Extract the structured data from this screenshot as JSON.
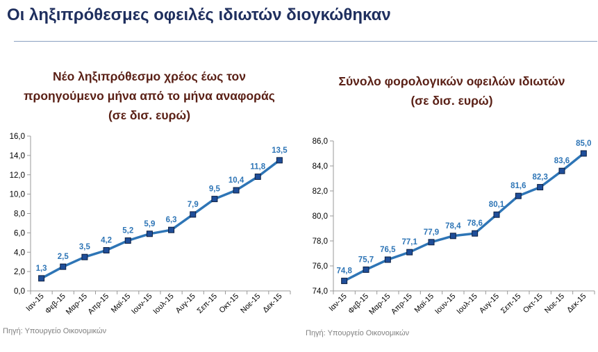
{
  "slide": {
    "title": "Οι ληξιπρόθεσμες οφειλές ιδιωτών διογκώθηκαν"
  },
  "charts": {
    "left": {
      "title_line1": "Νέο ληξιπρόθεσμο χρέος έως τον",
      "title_line2": "προηγούμενο μήνα από το μήνα αναφοράς",
      "title_line3": "(σε δισ. ευρώ)",
      "source": "Πηγή: Υπουργείο Οικονομικών"
    },
    "right": {
      "title_line1": "Σύνολο φορολογικών οφειλών ιδιωτών",
      "title_line2": "(σε δισ. ευρώ)",
      "source": "Πηγή: Υπουργείο Οικονομικών"
    }
  },
  "colors": {
    "line": "#2e75b6",
    "marker_fill": "#1f4e99",
    "marker_stroke": "#0d1f40",
    "data_label": "#2e75b6",
    "axis": "#999999",
    "tick_text": "#000000"
  },
  "chart_data": [
    {
      "type": "line",
      "title": "Νέο ληξιπρόθεσμο χρέος έως τον προηγούμενο μήνα από το μήνα αναφοράς (σε δισ. ευρώ)",
      "categories": [
        "Ιαν-15",
        "Φεβ-15",
        "Μαρ-15",
        "Απρ-15",
        "Μαϊ-15",
        "Ιουν-15",
        "Ιουλ-15",
        "Αυγ-15",
        "Σεπ-15",
        "Οκτ-15",
        "Νοε-15",
        "Δεκ-15"
      ],
      "values": [
        1.3,
        2.5,
        3.5,
        4.2,
        5.2,
        5.9,
        6.3,
        7.9,
        9.5,
        10.4,
        11.8,
        13.5
      ],
      "data_labels": [
        "1,3",
        "2,5",
        "3,5",
        "4,2",
        "5,2",
        "5,9",
        "6,3",
        "7,9",
        "9,5",
        "10,4",
        "11,8",
        "13,5"
      ],
      "yticks": [
        "0,0",
        "2,0",
        "4,0",
        "6,0",
        "8,0",
        "10,0",
        "12,0",
        "14,0",
        "16,0"
      ],
      "ylim": [
        0,
        16
      ],
      "grid": false,
      "legend": "none"
    },
    {
      "type": "line",
      "title": "Σύνολο φορολογικών οφειλών ιδιωτών (σε δισ. ευρώ)",
      "categories": [
        "Ιαν-15",
        "Φεβ-15",
        "Μαρ-15",
        "Απρ-15",
        "Μαϊ-15",
        "Ιουν-15",
        "Ιουλ-15",
        "Αυγ-15",
        "Σεπ-15",
        "Οκτ-15",
        "Νοε-15",
        "Δεκ-15"
      ],
      "values": [
        74.8,
        75.7,
        76.5,
        77.1,
        77.9,
        78.4,
        78.6,
        80.1,
        81.6,
        82.3,
        83.6,
        85.0
      ],
      "data_labels": [
        "74,8",
        "75,7",
        "76,5",
        "77,1",
        "77,9",
        "78,4",
        "78,6",
        "80,1",
        "81,6",
        "82,3",
        "83,6",
        "85,0"
      ],
      "yticks": [
        "74,0",
        "76,0",
        "78,0",
        "80,0",
        "82,0",
        "84,0",
        "86,0"
      ],
      "ylim": [
        74,
        86
      ],
      "grid": false,
      "legend": "none"
    }
  ]
}
